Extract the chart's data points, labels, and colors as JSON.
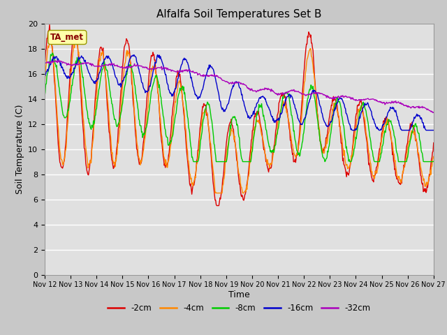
{
  "title": "Alfalfa Soil Temperatures Set B",
  "xlabel": "Time",
  "ylabel": "Soil Temperature (C)",
  "ylim": [
    0,
    20
  ],
  "yticks": [
    0,
    2,
    4,
    6,
    8,
    10,
    12,
    14,
    16,
    18,
    20
  ],
  "plot_bg_color": "#e0e0e0",
  "fig_bg_color": "#c8c8c8",
  "grid_color": "#ffffff",
  "series_colors": {
    "-2cm": "#dd0000",
    "-4cm": "#ff8800",
    "-8cm": "#00cc00",
    "-16cm": "#0000cc",
    "-32cm": "#aa00bb"
  },
  "legend_label": "TA_met",
  "legend_box_color": "#ffffaa",
  "legend_box_edge": "#999900",
  "x_tick_labels": [
    "Nov 12",
    "Nov 13",
    "Nov 14",
    "Nov 15",
    "Nov 16",
    "Nov 17",
    "Nov 18",
    "Nov 19",
    "Nov 20",
    "Nov 21",
    "Nov 22",
    "Nov 23",
    "Nov 24",
    "Nov 25",
    "Nov 26",
    "Nov 27"
  ]
}
